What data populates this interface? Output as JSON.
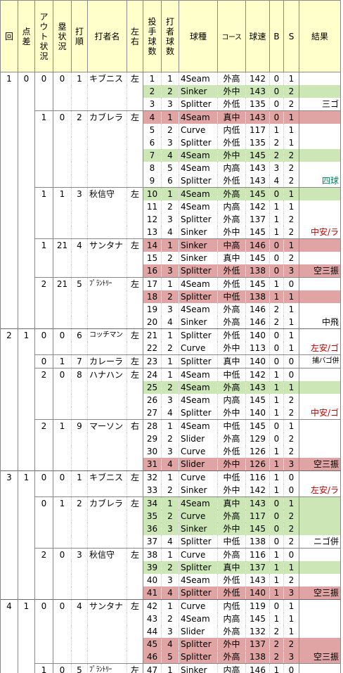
{
  "headers": {
    "inning": "回",
    "score_diff": "点差",
    "outs": "アウト状況",
    "runners": "塁状況",
    "order": "打順",
    "batter": "打者名",
    "bats": "左右",
    "pitch_no": "投手球数",
    "batter_pitch_no": "打者球数",
    "pitch_type": "球種",
    "course": "コース",
    "speed": "球速",
    "balls": "B",
    "strikes": "S",
    "result": "結果"
  },
  "colors": {
    "header_bg": "#ffffcc",
    "green_row": "#cce6b5",
    "red_row": "#e0a4a4",
    "red_text": "#c00000",
    "green_text": "#008060"
  },
  "rows": [
    {
      "inning": "1",
      "diff": "0",
      "outs": "0",
      "runners": "0",
      "order": "1",
      "batter": "キブニス",
      "bats": "左",
      "p": "1",
      "bp": "1",
      "type": "4Seam",
      "course": "外高",
      "speed": "142",
      "b": "0",
      "s": "1",
      "result": "",
      "hl": "",
      "res_hl": "",
      "res_color": "",
      "bat_start": true,
      "inn_start": true
    },
    {
      "inning": "",
      "diff": "",
      "outs": "",
      "runners": "",
      "order": "",
      "batter": "",
      "bats": "",
      "p": "2",
      "bp": "2",
      "type": "Sinker",
      "course": "外中",
      "speed": "143",
      "b": "0",
      "s": "2",
      "result": "",
      "hl": "green",
      "res_hl": "green",
      "res_color": ""
    },
    {
      "inning": "",
      "diff": "",
      "outs": "",
      "runners": "",
      "order": "",
      "batter": "",
      "bats": "",
      "p": "3",
      "bp": "3",
      "type": "Splitter",
      "course": "外低",
      "speed": "135",
      "b": "0",
      "s": "2",
      "result": "三ゴ",
      "hl": "",
      "res_hl": "",
      "res_color": "black"
    },
    {
      "inning": "",
      "diff": "",
      "outs": "1",
      "runners": "0",
      "order": "2",
      "batter": "カブレラ",
      "bats": "左",
      "p": "4",
      "bp": "1",
      "type": "4Seam",
      "course": "真中",
      "speed": "143",
      "b": "0",
      "s": "1",
      "result": "",
      "hl": "red",
      "res_hl": "red",
      "res_color": "",
      "bat_start": true
    },
    {
      "inning": "",
      "diff": "",
      "outs": "",
      "runners": "",
      "order": "",
      "batter": "",
      "bats": "",
      "p": "5",
      "bp": "2",
      "type": "Curve",
      "course": "内低",
      "speed": "117",
      "b": "1",
      "s": "1",
      "result": "",
      "hl": "",
      "res_hl": "",
      "res_color": ""
    },
    {
      "inning": "",
      "diff": "",
      "outs": "",
      "runners": "",
      "order": "",
      "batter": "",
      "bats": "",
      "p": "6",
      "bp": "3",
      "type": "Splitter",
      "course": "外低",
      "speed": "135",
      "b": "2",
      "s": "1",
      "result": "",
      "hl": "",
      "res_hl": "",
      "res_color": ""
    },
    {
      "inning": "",
      "diff": "",
      "outs": "",
      "runners": "",
      "order": "",
      "batter": "",
      "bats": "",
      "p": "7",
      "bp": "4",
      "type": "4Seam",
      "course": "外中",
      "speed": "145",
      "b": "2",
      "s": "2",
      "result": "",
      "hl": "green",
      "res_hl": "green",
      "res_color": ""
    },
    {
      "inning": "",
      "diff": "",
      "outs": "",
      "runners": "",
      "order": "",
      "batter": "",
      "bats": "",
      "p": "8",
      "bp": "5",
      "type": "4Seam",
      "course": "内高",
      "speed": "143",
      "b": "3",
      "s": "2",
      "result": "",
      "hl": "",
      "res_hl": "",
      "res_color": ""
    },
    {
      "inning": "",
      "diff": "",
      "outs": "",
      "runners": "",
      "order": "",
      "batter": "",
      "bats": "",
      "p": "9",
      "bp": "6",
      "type": "Splitter",
      "course": "外低",
      "speed": "143",
      "b": "4",
      "s": "2",
      "result": "四球",
      "hl": "",
      "res_hl": "",
      "res_color": "green"
    },
    {
      "inning": "",
      "diff": "",
      "outs": "1",
      "runners": "1",
      "order": "3",
      "batter": "秋信守",
      "bats": "左",
      "p": "10",
      "bp": "1",
      "type": "4Seam",
      "course": "外高",
      "speed": "145",
      "b": "0",
      "s": "1",
      "result": "",
      "hl": "green",
      "res_hl": "green",
      "res_color": "",
      "bat_start": true
    },
    {
      "inning": "",
      "diff": "",
      "outs": "",
      "runners": "",
      "order": "",
      "batter": "",
      "bats": "",
      "p": "11",
      "bp": "2",
      "type": "4Seam",
      "course": "内高",
      "speed": "142",
      "b": "1",
      "s": "1",
      "result": "",
      "hl": "",
      "res_hl": "",
      "res_color": ""
    },
    {
      "inning": "",
      "diff": "",
      "outs": "",
      "runners": "",
      "order": "",
      "batter": "",
      "bats": "",
      "p": "12",
      "bp": "3",
      "type": "Splitter",
      "course": "外高",
      "speed": "137",
      "b": "1",
      "s": "2",
      "result": "",
      "hl": "",
      "res_hl": "",
      "res_color": ""
    },
    {
      "inning": "",
      "diff": "",
      "outs": "",
      "runners": "",
      "order": "",
      "batter": "",
      "bats": "",
      "p": "13",
      "bp": "4",
      "type": "Sinker",
      "course": "外中",
      "speed": "145",
      "b": "1",
      "s": "2",
      "result": "中安/ラ",
      "hl": "",
      "res_hl": "",
      "res_color": "red"
    },
    {
      "inning": "",
      "diff": "",
      "outs": "1",
      "runners": "21",
      "order": "4",
      "batter": "サンタナ",
      "bats": "左",
      "p": "14",
      "bp": "1",
      "type": "Sinker",
      "course": "中高",
      "speed": "146",
      "b": "0",
      "s": "1",
      "result": "",
      "hl": "red",
      "res_hl": "red",
      "res_color": "",
      "bat_start": true
    },
    {
      "inning": "",
      "diff": "",
      "outs": "",
      "runners": "",
      "order": "",
      "batter": "",
      "bats": "",
      "p": "15",
      "bp": "2",
      "type": "Sinker",
      "course": "真中",
      "speed": "145",
      "b": "0",
      "s": "2",
      "result": "",
      "hl": "",
      "res_hl": "",
      "res_color": ""
    },
    {
      "inning": "",
      "diff": "",
      "outs": "",
      "runners": "",
      "order": "",
      "batter": "",
      "bats": "",
      "p": "16",
      "bp": "3",
      "type": "Splitter",
      "course": "外低",
      "speed": "138",
      "b": "0",
      "s": "3",
      "result": "空三振",
      "hl": "red",
      "res_hl": "red",
      "res_color": "black"
    },
    {
      "inning": "",
      "diff": "",
      "outs": "2",
      "runners": "21",
      "order": "5",
      "batter": "ﾌﾟﾗﾝﾄﾘｰ",
      "bats": "左",
      "p": "17",
      "bp": "1",
      "type": "4Seam",
      "course": "外低",
      "speed": "145",
      "b": "1",
      "s": "0",
      "result": "",
      "hl": "",
      "res_hl": "",
      "res_color": "",
      "bat_start": true,
      "small": true
    },
    {
      "inning": "",
      "diff": "",
      "outs": "",
      "runners": "",
      "order": "",
      "batter": "",
      "bats": "",
      "p": "18",
      "bp": "2",
      "type": "Splitter",
      "course": "中低",
      "speed": "138",
      "b": "1",
      "s": "1",
      "result": "",
      "hl": "red",
      "res_hl": "red",
      "res_color": ""
    },
    {
      "inning": "",
      "diff": "",
      "outs": "",
      "runners": "",
      "order": "",
      "batter": "",
      "bats": "",
      "p": "19",
      "bp": "3",
      "type": "4Seam",
      "course": "外高",
      "speed": "146",
      "b": "2",
      "s": "1",
      "result": "",
      "hl": "",
      "res_hl": "",
      "res_color": ""
    },
    {
      "inning": "",
      "diff": "",
      "outs": "",
      "runners": "",
      "order": "",
      "batter": "",
      "bats": "",
      "p": "20",
      "bp": "4",
      "type": "Sinker",
      "course": "外高",
      "speed": "146",
      "b": "2",
      "s": "1",
      "result": "中飛",
      "hl": "",
      "res_hl": "",
      "res_color": "black"
    },
    {
      "inning": "2",
      "diff": "1",
      "outs": "0",
      "runners": "0",
      "order": "6",
      "batter": "コッチマン",
      "bats": "左",
      "p": "21",
      "bp": "1",
      "type": "Splitter",
      "course": "外低",
      "speed": "140",
      "b": "0",
      "s": "1",
      "result": "",
      "hl": "",
      "res_hl": "",
      "res_color": "",
      "bat_start": true,
      "inn_start": true,
      "small": true
    },
    {
      "inning": "",
      "diff": "",
      "outs": "",
      "runners": "",
      "order": "",
      "batter": "",
      "bats": "",
      "p": "22",
      "bp": "2",
      "type": "Curve",
      "course": "外中",
      "speed": "113",
      "b": "0",
      "s": "1",
      "result": "左安/ゴ",
      "hl": "",
      "res_hl": "",
      "res_color": "red"
    },
    {
      "inning": "",
      "diff": "",
      "outs": "0",
      "runners": "1",
      "order": "7",
      "batter": "カレーラ",
      "bats": "左",
      "p": "23",
      "bp": "1",
      "type": "Splitter",
      "course": "真中",
      "speed": "140",
      "b": "0",
      "s": "0",
      "result": "捕バゴ併",
      "hl": "",
      "res_hl": "",
      "res_color": "black",
      "bat_start": true,
      "res_small": true
    },
    {
      "inning": "",
      "diff": "",
      "outs": "2",
      "runners": "0",
      "order": "8",
      "batter": "ハナハン",
      "bats": "左",
      "p": "24",
      "bp": "1",
      "type": "4Seam",
      "course": "中低",
      "speed": "142",
      "b": "1",
      "s": "0",
      "result": "",
      "hl": "",
      "res_hl": "",
      "res_color": "",
      "bat_start": true
    },
    {
      "inning": "",
      "diff": "",
      "outs": "",
      "runners": "",
      "order": "",
      "batter": "",
      "bats": "",
      "p": "25",
      "bp": "2",
      "type": "4Seam",
      "course": "外高",
      "speed": "143",
      "b": "1",
      "s": "1",
      "result": "",
      "hl": "green",
      "res_hl": "green",
      "res_color": ""
    },
    {
      "inning": "",
      "diff": "",
      "outs": "",
      "runners": "",
      "order": "",
      "batter": "",
      "bats": "",
      "p": "26",
      "bp": "3",
      "type": "4Seam",
      "course": "内高",
      "speed": "145",
      "b": "1",
      "s": "2",
      "result": "",
      "hl": "",
      "res_hl": "",
      "res_color": ""
    },
    {
      "inning": "",
      "diff": "",
      "outs": "",
      "runners": "",
      "order": "",
      "batter": "",
      "bats": "",
      "p": "27",
      "bp": "4",
      "type": "Splitter",
      "course": "外中",
      "speed": "140",
      "b": "1",
      "s": "2",
      "result": "中安/ゴ",
      "hl": "",
      "res_hl": "",
      "res_color": "red"
    },
    {
      "inning": "",
      "diff": "",
      "outs": "2",
      "runners": "1",
      "order": "9",
      "batter": "マーソン",
      "bats": "右",
      "p": "28",
      "bp": "1",
      "type": "4Seam",
      "course": "中低",
      "speed": "145",
      "b": "0",
      "s": "1",
      "result": "",
      "hl": "",
      "res_hl": "",
      "res_color": "",
      "bat_start": true
    },
    {
      "inning": "",
      "diff": "",
      "outs": "",
      "runners": "",
      "order": "",
      "batter": "",
      "bats": "",
      "p": "29",
      "bp": "2",
      "type": "Slider",
      "course": "外高",
      "speed": "129",
      "b": "0",
      "s": "2",
      "result": "",
      "hl": "",
      "res_hl": "",
      "res_color": ""
    },
    {
      "inning": "",
      "diff": "",
      "outs": "",
      "runners": "",
      "order": "",
      "batter": "",
      "bats": "",
      "p": "30",
      "bp": "3",
      "type": "Curve",
      "course": "外低",
      "speed": "126",
      "b": "1",
      "s": "2",
      "result": "",
      "hl": "",
      "res_hl": "",
      "res_color": ""
    },
    {
      "inning": "",
      "diff": "",
      "outs": "",
      "runners": "",
      "order": "",
      "batter": "",
      "bats": "",
      "p": "31",
      "bp": "4",
      "type": "Slider",
      "course": "外中",
      "speed": "126",
      "b": "1",
      "s": "3",
      "result": "空三振",
      "hl": "red",
      "res_hl": "red",
      "res_color": "black"
    },
    {
      "inning": "3",
      "diff": "1",
      "outs": "0",
      "runners": "0",
      "order": "1",
      "batter": "キブニス",
      "bats": "左",
      "p": "32",
      "bp": "1",
      "type": "Curve",
      "course": "中低",
      "speed": "116",
      "b": "1",
      "s": "0",
      "result": "",
      "hl": "",
      "res_hl": "",
      "res_color": "",
      "bat_start": true,
      "inn_start": true
    },
    {
      "inning": "",
      "diff": "",
      "outs": "",
      "runners": "",
      "order": "",
      "batter": "",
      "bats": "",
      "p": "33",
      "bp": "2",
      "type": "Sinker",
      "course": "外中",
      "speed": "142",
      "b": "1",
      "s": "0",
      "result": "左安/ラ",
      "hl": "",
      "res_hl": "",
      "res_color": "red"
    },
    {
      "inning": "",
      "diff": "",
      "outs": "0",
      "runners": "1",
      "order": "2",
      "batter": "カブレラ",
      "bats": "左",
      "p": "34",
      "bp": "1",
      "type": "4Seam",
      "course": "真中",
      "speed": "143",
      "b": "0",
      "s": "1",
      "result": "",
      "hl": "green",
      "res_hl": "green",
      "res_color": "",
      "bat_start": true
    },
    {
      "inning": "",
      "diff": "",
      "outs": "",
      "runners": "",
      "order": "",
      "batter": "",
      "bats": "",
      "p": "35",
      "bp": "2",
      "type": "Curve",
      "course": "外高",
      "speed": "117",
      "b": "0",
      "s": "2",
      "result": "",
      "hl": "green",
      "res_hl": "green",
      "res_color": ""
    },
    {
      "inning": "",
      "diff": "",
      "outs": "",
      "runners": "",
      "order": "",
      "batter": "",
      "bats": "",
      "p": "36",
      "bp": "3",
      "type": "Sinker",
      "course": "外中",
      "speed": "145",
      "b": "0",
      "s": "2",
      "result": "",
      "hl": "green",
      "res_hl": "green",
      "res_color": ""
    },
    {
      "inning": "",
      "diff": "",
      "outs": "",
      "runners": "",
      "order": "",
      "batter": "",
      "bats": "",
      "p": "37",
      "bp": "4",
      "type": "Splitter",
      "course": "中低",
      "speed": "138",
      "b": "0",
      "s": "2",
      "result": "ニゴ併",
      "hl": "",
      "res_hl": "",
      "res_color": "black"
    },
    {
      "inning": "",
      "diff": "",
      "outs": "2",
      "runners": "0",
      "order": "3",
      "batter": "秋信守",
      "bats": "左",
      "p": "38",
      "bp": "1",
      "type": "Curve",
      "course": "外高",
      "speed": "116",
      "b": "1",
      "s": "0",
      "result": "",
      "hl": "",
      "res_hl": "",
      "res_color": "",
      "bat_start": true
    },
    {
      "inning": "",
      "diff": "",
      "outs": "",
      "runners": "",
      "order": "",
      "batter": "",
      "bats": "",
      "p": "39",
      "bp": "2",
      "type": "Splitter",
      "course": "真中",
      "speed": "137",
      "b": "1",
      "s": "1",
      "result": "",
      "hl": "green",
      "res_hl": "green",
      "res_color": ""
    },
    {
      "inning": "",
      "diff": "",
      "outs": "",
      "runners": "",
      "order": "",
      "batter": "",
      "bats": "",
      "p": "40",
      "bp": "3",
      "type": "4Seam",
      "course": "外低",
      "speed": "143",
      "b": "1",
      "s": "2",
      "result": "",
      "hl": "",
      "res_hl": "",
      "res_color": ""
    },
    {
      "inning": "",
      "diff": "",
      "outs": "",
      "runners": "",
      "order": "",
      "batter": "",
      "bats": "",
      "p": "41",
      "bp": "4",
      "type": "Splitter",
      "course": "外低",
      "speed": "140",
      "b": "1",
      "s": "3",
      "result": "空三振",
      "hl": "red",
      "res_hl": "red",
      "res_color": "black"
    },
    {
      "inning": "4",
      "diff": "1",
      "outs": "0",
      "runners": "0",
      "order": "4",
      "batter": "サンタナ",
      "bats": "左",
      "p": "42",
      "bp": "1",
      "type": "Curve",
      "course": "内低",
      "speed": "119",
      "b": "0",
      "s": "1",
      "result": "",
      "hl": "",
      "res_hl": "",
      "res_color": "",
      "bat_start": true,
      "inn_start": true
    },
    {
      "inning": "",
      "diff": "",
      "outs": "",
      "runners": "",
      "order": "",
      "batter": "",
      "bats": "",
      "p": "43",
      "bp": "2",
      "type": "4Seam",
      "course": "内高",
      "speed": "145",
      "b": "1",
      "s": "1",
      "result": "",
      "hl": "",
      "res_hl": "",
      "res_color": ""
    },
    {
      "inning": "",
      "diff": "",
      "outs": "",
      "runners": "",
      "order": "",
      "batter": "",
      "bats": "",
      "p": "44",
      "bp": "3",
      "type": "Slider",
      "course": "外高",
      "speed": "132",
      "b": "2",
      "s": "1",
      "result": "",
      "hl": "",
      "res_hl": "",
      "res_color": ""
    },
    {
      "inning": "",
      "diff": "",
      "outs": "",
      "runners": "",
      "order": "",
      "batter": "",
      "bats": "",
      "p": "45",
      "bp": "4",
      "type": "Splitter",
      "course": "外中",
      "speed": "137",
      "b": "2",
      "s": "2",
      "result": "",
      "hl": "red",
      "res_hl": "red",
      "res_color": ""
    },
    {
      "inning": "",
      "diff": "",
      "outs": "",
      "runners": "",
      "order": "",
      "batter": "",
      "bats": "",
      "p": "46",
      "bp": "5",
      "type": "Splitter",
      "course": "外高",
      "speed": "138",
      "b": "2",
      "s": "3",
      "result": "空三振",
      "hl": "red",
      "res_hl": "red",
      "res_color": "black"
    },
    {
      "inning": "",
      "diff": "",
      "outs": "1",
      "runners": "0",
      "order": "5",
      "batter": "ﾌﾟﾗﾝﾄﾘｰ",
      "bats": "左",
      "p": "47",
      "bp": "1",
      "type": "Sinker",
      "course": "内高",
      "speed": "146",
      "b": "1",
      "s": "0",
      "result": "",
      "hl": "",
      "res_hl": "",
      "res_color": "",
      "bat_start": true,
      "small": true
    }
  ]
}
